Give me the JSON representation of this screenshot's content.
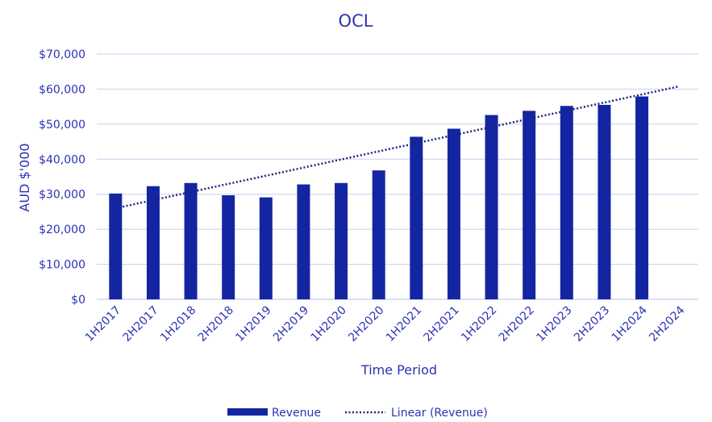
{
  "chart_data": {
    "type": "bar",
    "title": "OCL",
    "xlabel": "Time Period",
    "ylabel": "AUD $'000",
    "categories": [
      "1H2017",
      "2H2017",
      "1H2018",
      "2H2018",
      "1H2019",
      "2H2019",
      "1H2020",
      "2H2020",
      "1H2021",
      "2H2021",
      "1H2022",
      "2H2022",
      "1H2023",
      "2H2023",
      "1H2024",
      "2H2024"
    ],
    "series": [
      {
        "name": "Revenue",
        "values": [
          30200,
          32300,
          33200,
          29700,
          29100,
          32800,
          33200,
          36800,
          46400,
          48700,
          52600,
          53800,
          55200,
          55500,
          57900,
          null
        ]
      }
    ],
    "trendline": {
      "name": "Linear (Revenue)",
      "start": 26000,
      "end": 60800
    },
    "yticks": [
      "$0",
      "$10,000",
      "$20,000",
      "$30,000",
      "$40,000",
      "$50,000",
      "$60,000",
      "$70,000"
    ],
    "ylim": [
      0,
      70000
    ],
    "grid": true,
    "legend": "bottom",
    "colors": {
      "bar": "#1425a2",
      "trend": "#1a2380",
      "text": "#2b33b5",
      "grid": "#c8cdf0"
    }
  }
}
